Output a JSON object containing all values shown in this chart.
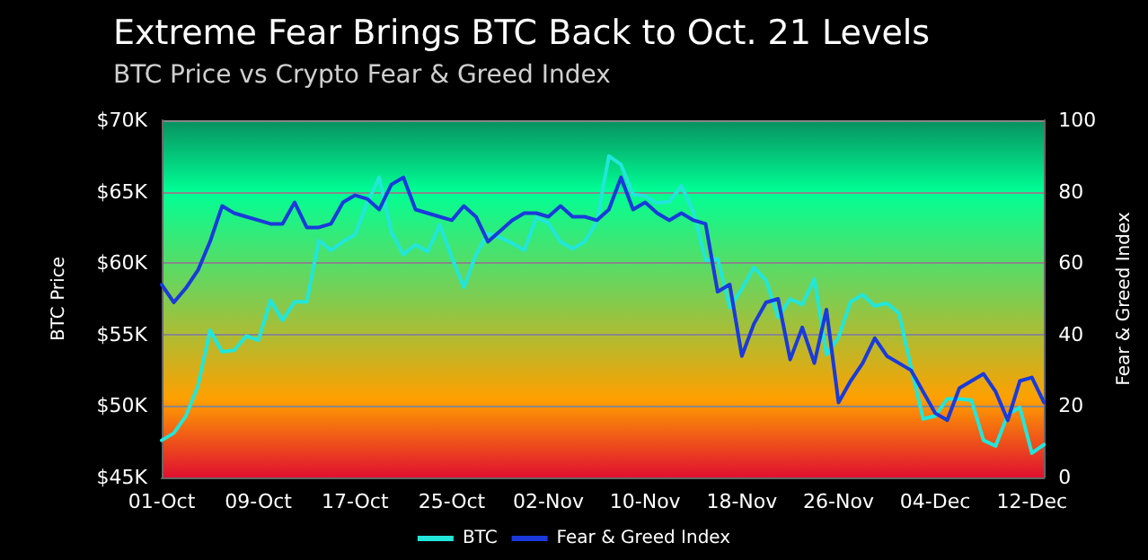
{
  "chart_data": {
    "type": "line",
    "title": "Extreme Fear Brings BTC Back to Oct. 21 Levels",
    "subtitle": "BTC Price vs Crypto Fear & Greed Index",
    "ylabel": "BTC Price",
    "y2label": "Fear & Greed Index",
    "x": [
      "--10-01",
      "--10-02",
      "--10-03",
      "--10-04",
      "--10-05",
      "--10-06",
      "--10-07",
      "--10-08",
      "--10-09",
      "--10-10",
      "--10-11",
      "--10-12",
      "--10-13",
      "--10-14",
      "--10-15",
      "--10-16",
      "--10-17",
      "--10-18",
      "--10-19",
      "--10-20",
      "--10-21",
      "--10-22",
      "--10-23",
      "--10-24",
      "--10-25",
      "--10-26",
      "--10-27",
      "--10-28",
      "--10-29",
      "--10-30",
      "--10-31",
      "--11-01",
      "--11-02",
      "--11-03",
      "--11-04",
      "--11-05",
      "--11-06",
      "--11-07",
      "--11-08",
      "--11-09",
      "--11-10",
      "--11-11",
      "--11-12",
      "--11-13",
      "--11-14",
      "--11-15",
      "--11-16",
      "--11-17",
      "--11-18",
      "--11-19",
      "--11-20",
      "--11-21",
      "--11-22",
      "--11-23",
      "--11-24",
      "--11-25",
      "--11-26",
      "--11-27",
      "--11-28",
      "--11-29",
      "--11-30",
      "--12-01",
      "--12-02",
      "--12-03",
      "--12-04",
      "--12-05",
      "--12-06",
      "--12-07",
      "--12-08",
      "--12-09",
      "--12-10",
      "--12-11",
      "--12-12",
      "--12-13"
    ],
    "series": [
      {
        "name": "BTC",
        "color": "#22e6da",
        "values": [
          47600,
          48100,
          49300,
          51400,
          55300,
          53800,
          53900,
          54900,
          54600,
          57400,
          56000,
          57300,
          57300,
          61600,
          60900,
          61500,
          62000,
          64200,
          66000,
          62200,
          60600,
          61300,
          60800,
          62700,
          60400,
          58300,
          60600,
          62100,
          61800,
          61400,
          60900,
          63200,
          62800,
          61500,
          61000,
          61500,
          62900,
          67500,
          66900,
          64800,
          64700,
          64200,
          64300,
          65400,
          63600,
          60200,
          60300,
          56900,
          58200,
          59700,
          58800,
          56200,
          57500,
          57100,
          58900,
          53600,
          54800,
          57300,
          57800,
          57000,
          57200,
          56500,
          52700,
          49100,
          49300,
          50500,
          50500,
          50400,
          47600,
          47200,
          49400,
          49900,
          46700,
          47300
        ]
      },
      {
        "name": "Fear & Greed Index",
        "color": "#1a3adb",
        "axis": "y2",
        "values": [
          54,
          49,
          53,
          58,
          66,
          76,
          74,
          73,
          72,
          71,
          71,
          77,
          70,
          70,
          71,
          77,
          79,
          78,
          75,
          82,
          84,
          75,
          74,
          73,
          72,
          76,
          73,
          66,
          69,
          72,
          74,
          74,
          73,
          76,
          73,
          73,
          72,
          75,
          84,
          75,
          77,
          74,
          72,
          74,
          72,
          71,
          52,
          54,
          34,
          43,
          49,
          50,
          33,
          42,
          32,
          47,
          21,
          27,
          32,
          39,
          34,
          32,
          30,
          24,
          18,
          16,
          25,
          27,
          29,
          24,
          16,
          27,
          28,
          21
        ]
      }
    ],
    "xlim": [
      "--10-01",
      "--12-13"
    ],
    "xticks": [
      {
        "value": "--10-01",
        "label": "01-Oct"
      },
      {
        "value": "--10-09",
        "label": "09-Oct"
      },
      {
        "value": "--10-17",
        "label": "17-Oct"
      },
      {
        "value": "--10-25",
        "label": "25-Oct"
      },
      {
        "value": "--11-02",
        "label": "02-Nov"
      },
      {
        "value": "--11-10",
        "label": "10-Nov"
      },
      {
        "value": "--11-18",
        "label": "18-Nov"
      },
      {
        "value": "--11-26",
        "label": "26-Nov"
      },
      {
        "value": "--12-04",
        "label": "04-Dec"
      },
      {
        "value": "--12-12",
        "label": "12-Dec"
      }
    ],
    "ylim": [
      45000,
      70000
    ],
    "yticks": [
      {
        "value": 45000,
        "label": "$45K"
      },
      {
        "value": 50000,
        "label": "$50K"
      },
      {
        "value": 55000,
        "label": "$55K"
      },
      {
        "value": 60000,
        "label": "$60K"
      },
      {
        "value": 65000,
        "label": "$65K"
      },
      {
        "value": 70000,
        "label": "$70K"
      }
    ],
    "y2lim": [
      0,
      100
    ],
    "y2ticks": [
      0,
      20,
      40,
      60,
      80,
      100
    ],
    "grid": "y",
    "legend": "bottom",
    "marker": "none",
    "line_style": "solid"
  }
}
